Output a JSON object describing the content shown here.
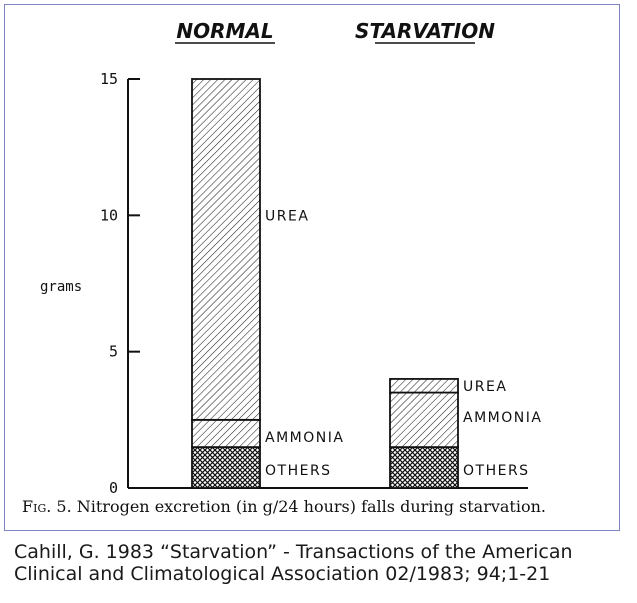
{
  "chart_data": {
    "type": "bar",
    "stacked": true,
    "categories": [
      "NORMAL",
      "STARVATION"
    ],
    "ylabel": "grams",
    "ylim": [
      0,
      15
    ],
    "yticks": [
      "0",
      "5",
      "10",
      "15"
    ],
    "series": [
      {
        "name": "OTHERS",
        "values": [
          1.5,
          1.5
        ],
        "pattern": "crosshatch"
      },
      {
        "name": "AMMONIA",
        "values": [
          1.0,
          2.0
        ],
        "pattern": "hatch"
      },
      {
        "name": "UREA",
        "values": [
          12.5,
          0.5
        ],
        "pattern": "hatch"
      }
    ],
    "grid": false,
    "legend": "inline-right"
  },
  "caption": {
    "fig_label": "Fig. 5.",
    "text": " Nitrogen excretion (in g/24 hours) falls during starvation."
  },
  "citation": {
    "line1": "Cahill, G. 1983 “Starvation” - Transactions of the American",
    "line2": "Clinical and Climatological Association 02/1983; 94;1-21"
  },
  "colors": {
    "ink": "#111111",
    "frame": "#7f86c8"
  }
}
